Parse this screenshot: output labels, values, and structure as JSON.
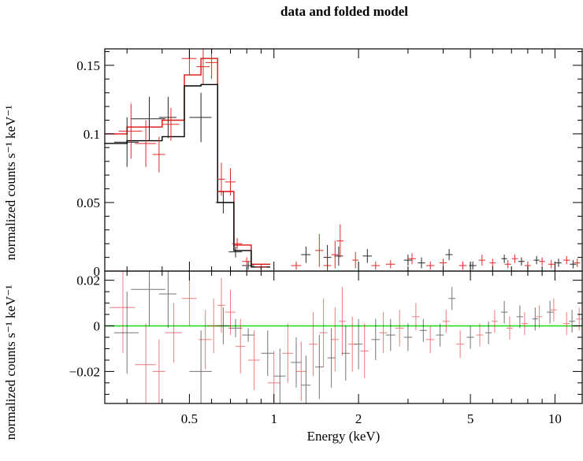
{
  "chart_data": {
    "type": "scatter",
    "title": "data and folded model",
    "xlabel": "Energy (keV)",
    "x_scale": "log",
    "xlim": [
      0.25,
      12.5
    ],
    "x_ticks": [
      0.5,
      1,
      2,
      5,
      10
    ],
    "x_tick_labels": [
      "0.5",
      "1",
      "2",
      "5",
      "10"
    ],
    "colors": {
      "black_series": "#000000",
      "red_series": "#dd1111",
      "zero_line": "#22dd22"
    },
    "top_panel": {
      "ylabel": "normalized counts s⁻¹ keV⁻¹",
      "ylim": [
        0,
        0.162
      ],
      "y_ticks": [
        0,
        0.05,
        0.1,
        0.15
      ],
      "y_tick_labels": [
        "0",
        "0.05",
        "0.1",
        "0.15"
      ],
      "model_edges": [
        0.25,
        0.3,
        0.4,
        0.48,
        0.55,
        0.63,
        0.72,
        0.83,
        0.97
      ],
      "model_black": [
        0.093,
        0.095,
        0.098,
        0.135,
        0.136,
        0.05,
        0.015,
        0.003
      ],
      "model_red": [
        0.1,
        0.105,
        0.11,
        0.143,
        0.155,
        0.058,
        0.019,
        0.005
      ],
      "data_black": [
        {
          "x": 0.3,
          "y": 0.094,
          "xe": 0.03,
          "ye": 0.018
        },
        {
          "x": 0.36,
          "y": 0.111,
          "xe": 0.05,
          "ye": 0.016
        },
        {
          "x": 0.42,
          "y": 0.112,
          "xe": 0.03,
          "ye": 0.015
        },
        {
          "x": 0.55,
          "y": 0.112,
          "xe": 0.05,
          "ye": 0.018
        },
        {
          "x": 0.66,
          "y": 0.05,
          "xe": 0.04,
          "ye": 0.008
        },
        {
          "x": 0.73,
          "y": 0.014,
          "xe": 0.04,
          "ye": 0.004
        },
        {
          "x": 0.81,
          "y": 0.004,
          "xe": 0.04,
          "ye": 0.003
        },
        {
          "x": 1.3,
          "y": 0.012,
          "xe": 0.05,
          "ye": 0.006
        },
        {
          "x": 1.55,
          "y": 0.01,
          "xe": 0.05,
          "ye": 0.009
        },
        {
          "x": 1.7,
          "y": 0.011,
          "xe": 0.06,
          "ye": 0.007
        },
        {
          "x": 2.15,
          "y": 0.011,
          "xe": 0.08,
          "ye": 0.005
        },
        {
          "x": 3.0,
          "y": 0.008,
          "xe": 0.1,
          "ye": 0.004
        },
        {
          "x": 3.35,
          "y": 0.006,
          "xe": 0.1,
          "ye": 0.004
        },
        {
          "x": 4.2,
          "y": 0.012,
          "xe": 0.12,
          "ye": 0.004
        },
        {
          "x": 5.1,
          "y": 0.004,
          "xe": 0.15,
          "ye": 0.003
        },
        {
          "x": 6.6,
          "y": 0.009,
          "xe": 0.15,
          "ye": 0.003
        },
        {
          "x": 7.6,
          "y": 0.007,
          "xe": 0.2,
          "ye": 0.003
        },
        {
          "x": 8.6,
          "y": 0.008,
          "xe": 0.2,
          "ye": 0.003
        },
        {
          "x": 10.3,
          "y": 0.006,
          "xe": 0.25,
          "ye": 0.003
        },
        {
          "x": 11.6,
          "y": 0.005,
          "xe": 0.3,
          "ye": 0.003
        }
      ],
      "data_red": [
        {
          "x": 0.31,
          "y": 0.102,
          "xe": 0.03,
          "ye": 0.02
        },
        {
          "x": 0.35,
          "y": 0.093,
          "xe": 0.03,
          "ye": 0.017
        },
        {
          "x": 0.39,
          "y": 0.085,
          "xe": 0.02,
          "ye": 0.013
        },
        {
          "x": 0.43,
          "y": 0.107,
          "xe": 0.03,
          "ye": 0.012
        },
        {
          "x": 0.5,
          "y": 0.155,
          "xe": 0.03,
          "ye": 0.012
        },
        {
          "x": 0.56,
          "y": 0.149,
          "xe": 0.03,
          "ye": 0.013
        },
        {
          "x": 0.6,
          "y": 0.152,
          "xe": 0.03,
          "ye": 0.012
        },
        {
          "x": 0.65,
          "y": 0.067,
          "xe": 0.02,
          "ye": 0.012
        },
        {
          "x": 0.7,
          "y": 0.065,
          "xe": 0.03,
          "ye": 0.01
        },
        {
          "x": 0.74,
          "y": 0.02,
          "xe": 0.03,
          "ye": 0.004
        },
        {
          "x": 0.8,
          "y": 0.007,
          "xe": 0.03,
          "ye": 0.003
        },
        {
          "x": 0.9,
          "y": 0.003,
          "xe": 0.04,
          "ye": 0.002
        },
        {
          "x": 1.2,
          "y": 0.004,
          "xe": 0.05,
          "ye": 0.003
        },
        {
          "x": 1.45,
          "y": 0.015,
          "xe": 0.05,
          "ye": 0.012
        },
        {
          "x": 1.55,
          "y": 0.004,
          "xe": 0.05,
          "ye": 0.008
        },
        {
          "x": 1.65,
          "y": 0.012,
          "xe": 0.05,
          "ye": 0.01
        },
        {
          "x": 1.72,
          "y": 0.022,
          "xe": 0.05,
          "ye": 0.012
        },
        {
          "x": 1.95,
          "y": 0.008,
          "xe": 0.05,
          "ye": 0.006
        },
        {
          "x": 2.3,
          "y": 0.004,
          "xe": 0.08,
          "ye": 0.003
        },
        {
          "x": 2.6,
          "y": 0.005,
          "xe": 0.1,
          "ye": 0.003
        },
        {
          "x": 3.1,
          "y": 0.009,
          "xe": 0.1,
          "ye": 0.004
        },
        {
          "x": 3.6,
          "y": 0.004,
          "xe": 0.12,
          "ye": 0.003
        },
        {
          "x": 4.0,
          "y": 0.006,
          "xe": 0.12,
          "ye": 0.003
        },
        {
          "x": 4.7,
          "y": 0.004,
          "xe": 0.15,
          "ye": 0.003
        },
        {
          "x": 5.5,
          "y": 0.008,
          "xe": 0.15,
          "ye": 0.004
        },
        {
          "x": 6.0,
          "y": 0.006,
          "xe": 0.15,
          "ye": 0.003
        },
        {
          "x": 6.8,
          "y": 0.005,
          "xe": 0.18,
          "ye": 0.003
        },
        {
          "x": 7.2,
          "y": 0.009,
          "xe": 0.18,
          "ye": 0.003
        },
        {
          "x": 8.0,
          "y": 0.004,
          "xe": 0.2,
          "ye": 0.003
        },
        {
          "x": 9.0,
          "y": 0.007,
          "xe": 0.22,
          "ye": 0.003
        },
        {
          "x": 9.7,
          "y": 0.005,
          "xe": 0.25,
          "ye": 0.003
        },
        {
          "x": 11.0,
          "y": 0.008,
          "xe": 0.3,
          "ye": 0.003
        },
        {
          "x": 12.0,
          "y": 0.006,
          "xe": 0.3,
          "ye": 0.003
        }
      ]
    },
    "bottom_panel": {
      "ylabel": "normalized counts s⁻¹ keV⁻¹",
      "ylim": [
        -0.034,
        0.024
      ],
      "y_ticks": [
        -0.02,
        0,
        0.02
      ],
      "y_tick_labels": [
        "−0.02",
        "0",
        "0.02"
      ],
      "zero_line": 0,
      "residuals_black": [
        {
          "x": 0.3,
          "y": -0.003,
          "xe": 0.03,
          "ye": 0.018
        },
        {
          "x": 0.36,
          "y": 0.016,
          "xe": 0.05,
          "ye": 0.016
        },
        {
          "x": 0.42,
          "y": 0.014,
          "xe": 0.03,
          "ye": 0.015
        },
        {
          "x": 0.55,
          "y": -0.02,
          "xe": 0.05,
          "ye": 0.018
        },
        {
          "x": 0.66,
          "y": 0.0,
          "xe": 0.04,
          "ye": 0.008
        },
        {
          "x": 0.73,
          "y": -0.001,
          "xe": 0.04,
          "ye": 0.004
        },
        {
          "x": 0.81,
          "y": -0.004,
          "xe": 0.04,
          "ye": 0.003
        },
        {
          "x": 0.95,
          "y": -0.012,
          "xe": 0.05,
          "ye": 0.01
        },
        {
          "x": 1.05,
          "y": -0.022,
          "xe": 0.05,
          "ye": 0.012
        },
        {
          "x": 1.2,
          "y": -0.016,
          "xe": 0.05,
          "ye": 0.011
        },
        {
          "x": 1.3,
          "y": -0.026,
          "xe": 0.05,
          "ye": 0.013
        },
        {
          "x": 1.45,
          "y": -0.018,
          "xe": 0.05,
          "ye": 0.014
        },
        {
          "x": 1.6,
          "y": -0.014,
          "xe": 0.05,
          "ye": 0.013
        },
        {
          "x": 1.8,
          "y": -0.012,
          "xe": 0.06,
          "ye": 0.012
        },
        {
          "x": 2.0,
          "y": -0.008,
          "xe": 0.07,
          "ye": 0.011
        },
        {
          "x": 2.3,
          "y": -0.006,
          "xe": 0.08,
          "ye": 0.009
        },
        {
          "x": 2.6,
          "y": -0.004,
          "xe": 0.1,
          "ye": 0.007
        },
        {
          "x": 3.0,
          "y": -0.005,
          "xe": 0.1,
          "ye": 0.006
        },
        {
          "x": 3.4,
          "y": -0.002,
          "xe": 0.1,
          "ye": 0.005
        },
        {
          "x": 3.9,
          "y": -0.004,
          "xe": 0.12,
          "ye": 0.005
        },
        {
          "x": 4.3,
          "y": 0.012,
          "xe": 0.12,
          "ye": 0.005
        },
        {
          "x": 5.0,
          "y": -0.005,
          "xe": 0.15,
          "ye": 0.005
        },
        {
          "x": 5.8,
          "y": -0.003,
          "xe": 0.15,
          "ye": 0.005
        },
        {
          "x": 6.6,
          "y": 0.006,
          "xe": 0.18,
          "ye": 0.005
        },
        {
          "x": 7.5,
          "y": 0.004,
          "xe": 0.2,
          "ye": 0.005
        },
        {
          "x": 8.5,
          "y": 0.003,
          "xe": 0.2,
          "ye": 0.005
        },
        {
          "x": 9.6,
          "y": 0.006,
          "xe": 0.25,
          "ye": 0.005
        },
        {
          "x": 11.5,
          "y": 0.002,
          "xe": 0.3,
          "ye": 0.005
        }
      ],
      "residuals_red": [
        {
          "x": 0.29,
          "y": 0.008,
          "xe": 0.03,
          "ye": 0.02
        },
        {
          "x": 0.35,
          "y": -0.017,
          "xe": 0.03,
          "ye": 0.018
        },
        {
          "x": 0.39,
          "y": -0.02,
          "xe": 0.02,
          "ye": 0.014
        },
        {
          "x": 0.44,
          "y": -0.003,
          "xe": 0.03,
          "ye": 0.013
        },
        {
          "x": 0.5,
          "y": 0.012,
          "xe": 0.03,
          "ye": 0.012
        },
        {
          "x": 0.57,
          "y": -0.006,
          "xe": 0.03,
          "ye": 0.013
        },
        {
          "x": 0.61,
          "y": 0.0,
          "xe": 0.03,
          "ye": 0.012
        },
        {
          "x": 0.65,
          "y": 0.009,
          "xe": 0.02,
          "ye": 0.012
        },
        {
          "x": 0.7,
          "y": 0.006,
          "xe": 0.03,
          "ye": 0.01
        },
        {
          "x": 0.76,
          "y": -0.009,
          "xe": 0.03,
          "ye": 0.012
        },
        {
          "x": 0.85,
          "y": -0.015,
          "xe": 0.04,
          "ye": 0.013
        },
        {
          "x": 1.0,
          "y": -0.025,
          "xe": 0.05,
          "ye": 0.014
        },
        {
          "x": 1.12,
          "y": -0.012,
          "xe": 0.05,
          "ye": 0.013
        },
        {
          "x": 1.25,
          "y": -0.02,
          "xe": 0.05,
          "ye": 0.013
        },
        {
          "x": 1.38,
          "y": -0.008,
          "xe": 0.05,
          "ye": 0.014
        },
        {
          "x": 1.5,
          "y": -0.003,
          "xe": 0.05,
          "ye": 0.015
        },
        {
          "x": 1.65,
          "y": -0.006,
          "xe": 0.05,
          "ye": 0.014
        },
        {
          "x": 1.75,
          "y": 0.002,
          "xe": 0.05,
          "ye": 0.015
        },
        {
          "x": 1.9,
          "y": -0.008,
          "xe": 0.06,
          "ye": 0.012
        },
        {
          "x": 2.1,
          "y": -0.011,
          "xe": 0.07,
          "ye": 0.012
        },
        {
          "x": 2.45,
          "y": -0.003,
          "xe": 0.08,
          "ye": 0.009
        },
        {
          "x": 2.8,
          "y": -0.001,
          "xe": 0.1,
          "ye": 0.008
        },
        {
          "x": 3.2,
          "y": 0.004,
          "xe": 0.1,
          "ye": 0.006
        },
        {
          "x": 3.6,
          "y": -0.006,
          "xe": 0.12,
          "ye": 0.006
        },
        {
          "x": 4.1,
          "y": 0.002,
          "xe": 0.12,
          "ye": 0.005
        },
        {
          "x": 4.6,
          "y": -0.008,
          "xe": 0.15,
          "ye": 0.006
        },
        {
          "x": 5.4,
          "y": -0.004,
          "xe": 0.15,
          "ye": 0.005
        },
        {
          "x": 6.1,
          "y": 0.002,
          "xe": 0.15,
          "ye": 0.005
        },
        {
          "x": 6.9,
          "y": -0.001,
          "xe": 0.18,
          "ye": 0.005
        },
        {
          "x": 7.8,
          "y": 0.001,
          "xe": 0.2,
          "ye": 0.005
        },
        {
          "x": 8.8,
          "y": 0.004,
          "xe": 0.22,
          "ye": 0.005
        },
        {
          "x": 9.9,
          "y": 0.007,
          "xe": 0.25,
          "ye": 0.005
        },
        {
          "x": 11.0,
          "y": 0.001,
          "xe": 0.3,
          "ye": 0.005
        },
        {
          "x": 12.2,
          "y": 0.003,
          "xe": 0.3,
          "ye": 0.005
        }
      ]
    }
  }
}
